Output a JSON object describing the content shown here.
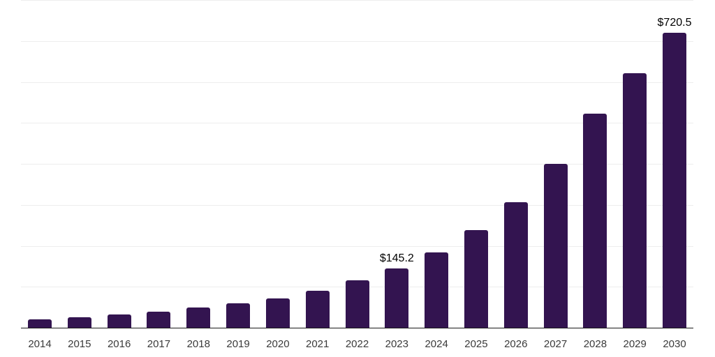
{
  "page": {
    "background_color": "#ffffff"
  },
  "chart_data": {
    "type": "bar",
    "title": "",
    "xlabel": "",
    "ylabel": "",
    "categories": [
      "2014",
      "2015",
      "2016",
      "2017",
      "2018",
      "2019",
      "2020",
      "2021",
      "2022",
      "2023",
      "2024",
      "2025",
      "2026",
      "2027",
      "2028",
      "2029",
      "2030"
    ],
    "values": [
      20,
      25,
      32,
      40,
      49,
      60,
      71,
      90,
      115,
      145.2,
      184,
      238,
      306,
      400,
      522,
      622,
      720.5
    ],
    "value_labels": [
      "",
      "",
      "",
      "",
      "",
      "",
      "",
      "",
      "",
      "$145.2",
      "",
      "",
      "",
      "",
      "",
      "",
      "$720.5"
    ],
    "ylim": [
      0,
      800
    ],
    "gridline_step": 100,
    "grid": "horizontal-only",
    "legend": "none",
    "y_tick_labels_shown": false,
    "colors": {
      "bar": "#331450",
      "gridline": "#ededed",
      "axis_line": "#1a1a1a",
      "tick_label": "#3a3a3a",
      "value_label": "#000000",
      "background": "#ffffff"
    }
  }
}
